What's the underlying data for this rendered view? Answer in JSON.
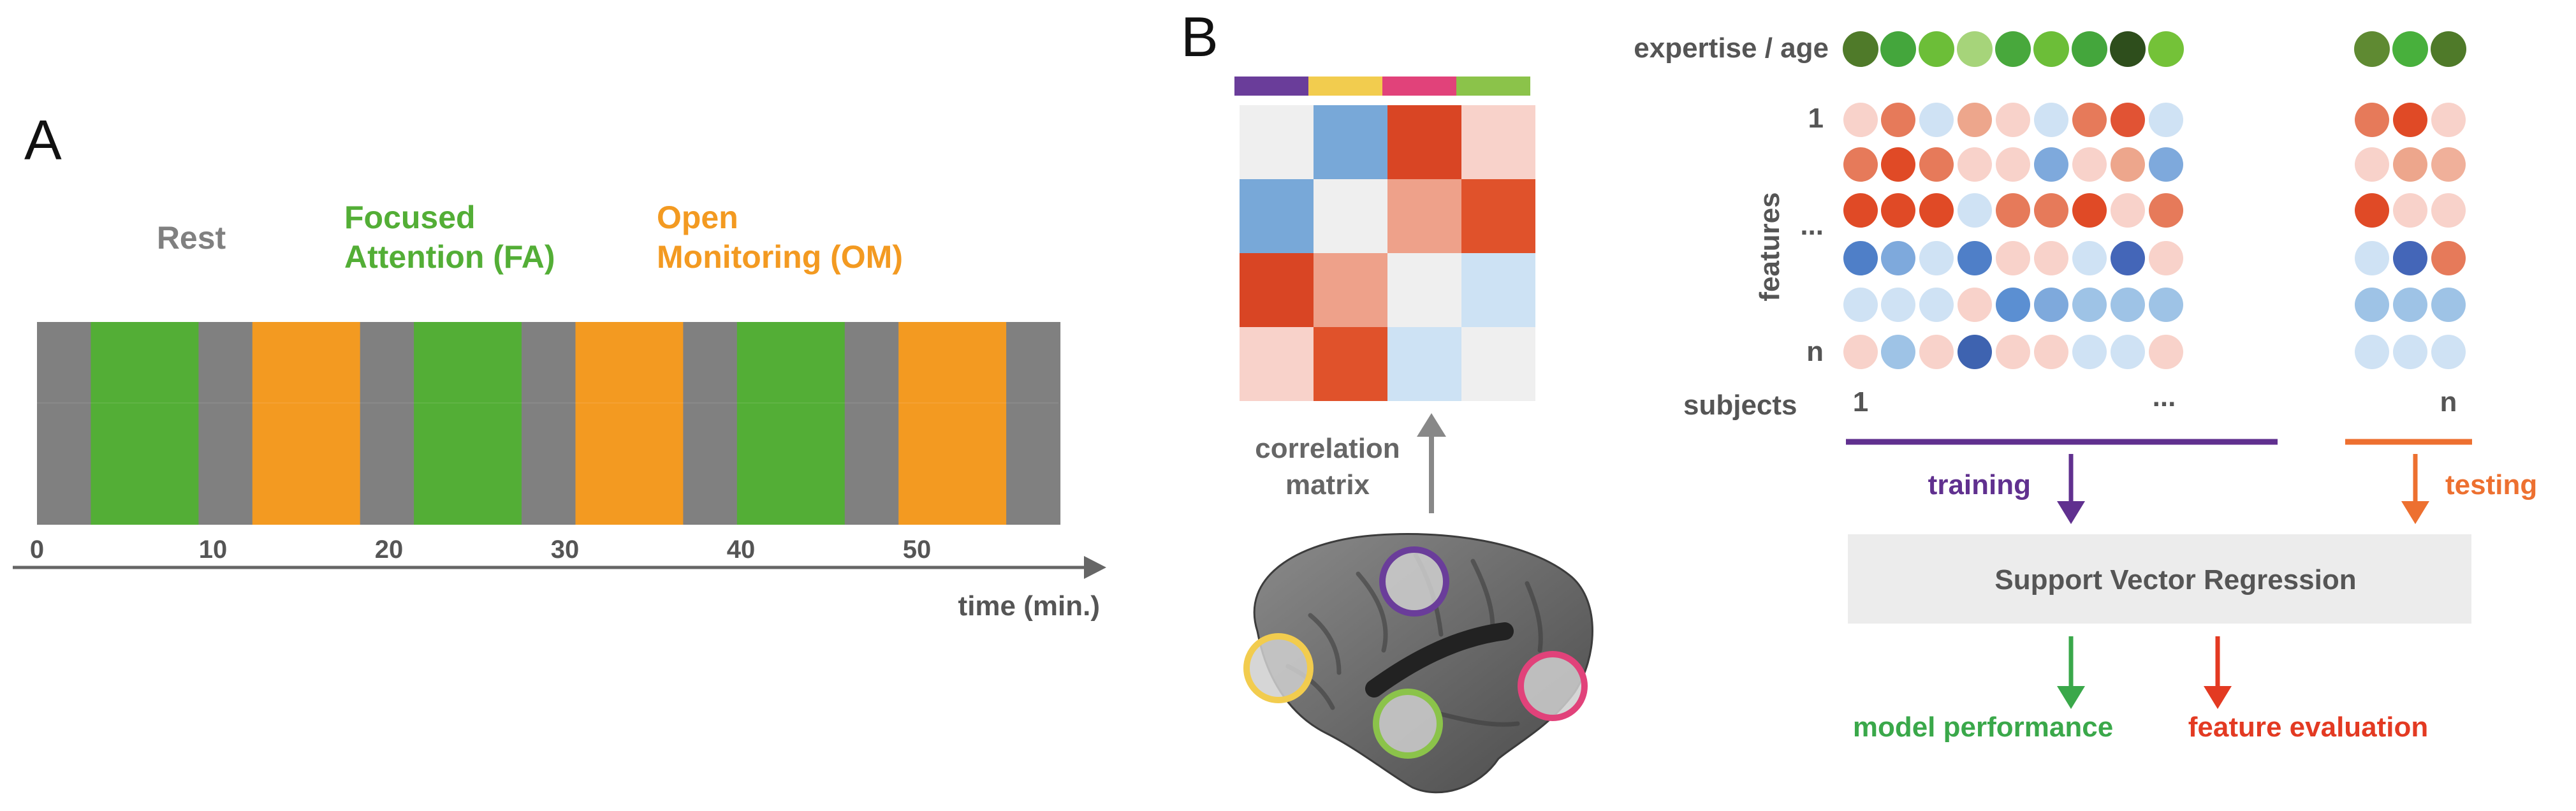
{
  "panel_a": {
    "letter": "A",
    "legend": {
      "rest": "Rest",
      "fa_line1": "Focused",
      "fa_line2": "Attention (FA)",
      "om_line1": "Open",
      "om_line2": "Monitoring (OM)"
    },
    "timeline": {
      "segments": [
        {
          "state": "rest",
          "start": 0,
          "end": 3
        },
        {
          "state": "fa",
          "start": 3,
          "end": 9
        },
        {
          "state": "rest",
          "start": 9,
          "end": 12
        },
        {
          "state": "om",
          "start": 12,
          "end": 18
        },
        {
          "state": "rest",
          "start": 18,
          "end": 21
        },
        {
          "state": "fa",
          "start": 21,
          "end": 27
        },
        {
          "state": "rest",
          "start": 27,
          "end": 30
        },
        {
          "state": "om",
          "start": 30,
          "end": 36
        },
        {
          "state": "rest",
          "start": 36,
          "end": 39
        },
        {
          "state": "fa",
          "start": 39,
          "end": 45
        },
        {
          "state": "rest",
          "start": 45,
          "end": 48
        },
        {
          "state": "om",
          "start": 48,
          "end": 54
        },
        {
          "state": "rest",
          "start": 54,
          "end": 57
        }
      ],
      "ticks": [
        "0",
        "10",
        "20",
        "30",
        "40",
        "50"
      ],
      "axis_label": "time (min.)"
    }
  },
  "panel_b": {
    "letter": "B",
    "correlation_label_line1": "correlation",
    "correlation_label_line2": "matrix",
    "expertise_label": "expertise / age",
    "features_label": "features",
    "feature_first": "1",
    "feature_dots": "...",
    "feature_last": "n",
    "subjects_label": "subjects",
    "subjects_first": "1",
    "subjects_dots": "...",
    "subjects_last": "n",
    "training_label": "training",
    "testing_label": "testing",
    "svr_label": "Support Vector Regression",
    "output_model": "model performance",
    "output_feature": "feature evaluation"
  },
  "colors": {
    "rest": "#808080",
    "fa": "#53ae36",
    "om": "#f39a21",
    "purple": "#60308f",
    "orange": "#ed7030",
    "green": "#3aa84a",
    "red": "#e33a22",
    "roi_purple": "#6a3d9a",
    "roi_yellow": "#f2cc4e",
    "roi_pink": "#e1427a",
    "roi_green": "#8bc34a"
  },
  "correlation_matrix": {
    "roi_colors": [
      "#6a3d9a",
      "#f2cc4e",
      "#e1427a",
      "#8bc34a"
    ],
    "cells": [
      [
        "#efefef",
        "#78a8d8",
        "#d94524",
        "#f8d2ca"
      ],
      [
        "#78a8d8",
        "#efefef",
        "#eea18a",
        "#e0522b"
      ],
      [
        "#d94524",
        "#eea18a",
        "#efefef",
        "#cde2f4"
      ],
      [
        "#f8d2ca",
        "#e0522b",
        "#cde2f4",
        "#efefef"
      ]
    ]
  },
  "expertise_dots": {
    "train": [
      "#4f7a29",
      "#44a63c",
      "#6cbe38",
      "#a6d47a",
      "#48a83c",
      "#6cbe38",
      "#44a63c",
      "#2e4e1c",
      "#74c238"
    ],
    "test": [
      "#5f8a32",
      "#48b03c",
      "#4f7a29"
    ]
  },
  "feature_matrix": {
    "train": [
      [
        "#f8d2ca",
        "#e67a5a",
        "#cfe2f4",
        "#eda68c",
        "#f8d2ca",
        "#cfe2f4",
        "#e67a5a",
        "#e15334",
        "#cfe2f4"
      ],
      [
        "#e67a5a",
        "#e04a26",
        "#e67a5a",
        "#f8d2ca",
        "#f8d2ca",
        "#7ea9dc",
        "#f8d2ca",
        "#eda68c",
        "#7ea9dc"
      ],
      [
        "#e04a26",
        "#e04a26",
        "#e04a26",
        "#cfe2f4",
        "#e67a5a",
        "#e67a5a",
        "#e04a26",
        "#f8d2ca",
        "#e67a5a"
      ],
      [
        "#4f7fc8",
        "#7ea9dc",
        "#cfe2f4",
        "#4f7fc8",
        "#f8d2ca",
        "#f8d2ca",
        "#cfe2f4",
        "#4466b8",
        "#f8d2ca"
      ],
      [
        "#cfe2f4",
        "#cfe2f4",
        "#cfe2f4",
        "#f8d2ca",
        "#5b8fd2",
        "#7ea9dc",
        "#9ec3e6",
        "#9ec3e6",
        "#9ec3e6"
      ],
      [
        "#f8d2ca",
        "#9ec3e6",
        "#f8d2ca",
        "#3e63b0",
        "#f8d2ca",
        "#f8d2ca",
        "#cfe2f4",
        "#cfe2f4",
        "#f8d2ca"
      ]
    ],
    "test": [
      [
        "#e67a5a",
        "#e04a26",
        "#f8d2ca"
      ],
      [
        "#f8d2ca",
        "#eda68c",
        "#f0b09a"
      ],
      [
        "#e04a26",
        "#f8d2ca",
        "#f8d2ca"
      ],
      [
        "#cfe2f4",
        "#4466b8",
        "#e67a5a"
      ],
      [
        "#9ec3e6",
        "#9ec3e6",
        "#9ec3e6"
      ],
      [
        "#cfe2f4",
        "#cfe2f4",
        "#cfe2f4"
      ]
    ]
  }
}
